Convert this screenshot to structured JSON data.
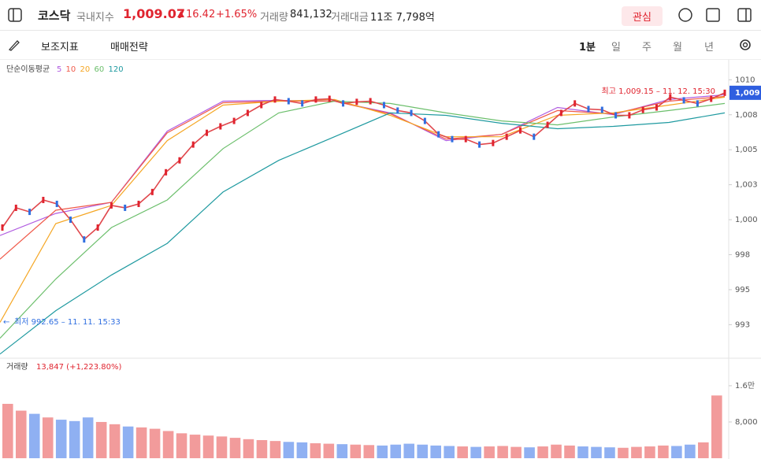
{
  "header": {
    "name": "코스닥",
    "market": "국내지수",
    "price": "1,009.07",
    "change": "16.42",
    "change_rate": "+1.65%",
    "volume_label": "거래량",
    "volume": "841,132",
    "amount_label": "거래대금",
    "amount": "11조 7,798억",
    "watch_button": "관심"
  },
  "toolbar": {
    "indicators": "보조지표",
    "strategy": "매매전략",
    "periods": [
      "1분",
      "일",
      "주",
      "월",
      "년"
    ]
  },
  "chart_data": [
    {
      "type": "line",
      "legend_title": "단순이동평균",
      "color": "#e0474c",
      "values": [
        999.44,
        1000.85,
        1000.56,
        1001.41,
        1001.13,
        1000.0,
        998.59,
        999.44,
        1001.02,
        1000.85,
        1001.13,
        1001.98,
        1003.39,
        1004.24,
        1005.37,
        1006.21,
        1006.67,
        1007.06,
        1007.63,
        1008.19,
        1008.59,
        1008.47,
        1008.31,
        1008.59,
        1008.64,
        1008.31,
        1008.42,
        1008.47,
        1008.19,
        1007.8,
        1007.63,
        1007.06,
        1006.1,
        1005.76,
        1005.76,
        1005.37,
        1005.48,
        1005.93,
        1006.38,
        1005.93,
        1006.78,
        1007.63,
        1008.31,
        1007.91,
        1007.85,
        1007.46,
        1007.46,
        1007.85,
        1008.02,
        1008.76,
        1008.53,
        1008.31,
        1008.64,
        1009.07
      ],
      "series": [
        {
          "name": "5",
          "color": "#b05be0",
          "values": [
            998.87,
            1000.45,
            1001.24,
            1006.33,
            1008.47,
            1008.53,
            1008.47,
            1007.63,
            1005.65,
            1006.1,
            1008.02,
            1007.51,
            1008.59,
            1008.93
          ]
        },
        {
          "name": "10",
          "color": "#f05a4a",
          "values": [
            997.18,
            1000.68,
            1001.24,
            1006.21,
            1008.36,
            1008.47,
            1008.47,
            1007.57,
            1005.76,
            1006.1,
            1007.8,
            1007.57,
            1008.47,
            1008.81
          ]
        },
        {
          "name": "20",
          "color": "#f5a623",
          "values": [
            992.66,
            999.72,
            1001.02,
            1005.65,
            1008.19,
            1008.47,
            1008.59,
            1007.46,
            1005.93,
            1005.93,
            1007.46,
            1007.63,
            1008.19,
            1008.76
          ]
        },
        {
          "name": "60",
          "color": "#6cbf6c",
          "values": [
            991.53,
            995.76,
            999.44,
            1001.41,
            1005.08,
            1007.63,
            1008.47,
            1008.31,
            1007.63,
            1007.06,
            1006.78,
            1007.34,
            1007.8,
            1008.31
          ]
        },
        {
          "name": "120",
          "color": "#1f9aa0",
          "values": [
            990.4,
            993.5,
            996.05,
            998.31,
            1001.98,
            1004.24,
            1005.93,
            1007.63,
            1007.46,
            1006.89,
            1006.5,
            1006.67,
            1006.95,
            1007.63
          ]
        }
      ],
      "ylim": [
        990.1,
        1011.2
      ],
      "yticks": [
        1010,
        {
          "value": 1007.5,
          "label": "1,008"
        },
        {
          "value": 1005,
          "label": "1,005"
        },
        {
          "value": 1002.5,
          "label": "1,003"
        },
        {
          "value": 1000,
          "label": "1,000"
        },
        {
          "value": 997.5,
          "label": "998"
        },
        995,
        {
          "value": 992.5,
          "label": "993"
        }
      ],
      "high_label": "최고 1,009.15 – 11. 12. 15:30",
      "low_label": "최저 992.65 – 11. 11. 15:33",
      "last_label": "1,009"
    },
    {
      "type": "bar",
      "title": "거래량",
      "last_label": "13,847 (+1,223.80%)",
      "up_color": "#f29b9b",
      "down_color": "#8fb0f2",
      "values": [
        12000,
        10500,
        9800,
        9000,
        8500,
        8200,
        9000,
        8000,
        7500,
        7000,
        6800,
        6500,
        6000,
        5500,
        5200,
        5000,
        4800,
        4500,
        4200,
        4000,
        3800,
        3600,
        3500,
        3300,
        3200,
        3100,
        3000,
        2900,
        2800,
        3000,
        3200,
        3000,
        2800,
        2700,
        2600,
        2500,
        2600,
        2700,
        2500,
        2400,
        2600,
        3000,
        2800,
        2600,
        2500,
        2400,
        2300,
        2500,
        2600,
        2800,
        2700,
        3000,
        3500,
        13847
      ],
      "ylim": [
        0,
        21200
      ],
      "yticks": [
        {
          "value": 16000,
          "label": "1.6만"
        },
        {
          "value": 8000,
          "label": "8,000"
        }
      ]
    }
  ]
}
